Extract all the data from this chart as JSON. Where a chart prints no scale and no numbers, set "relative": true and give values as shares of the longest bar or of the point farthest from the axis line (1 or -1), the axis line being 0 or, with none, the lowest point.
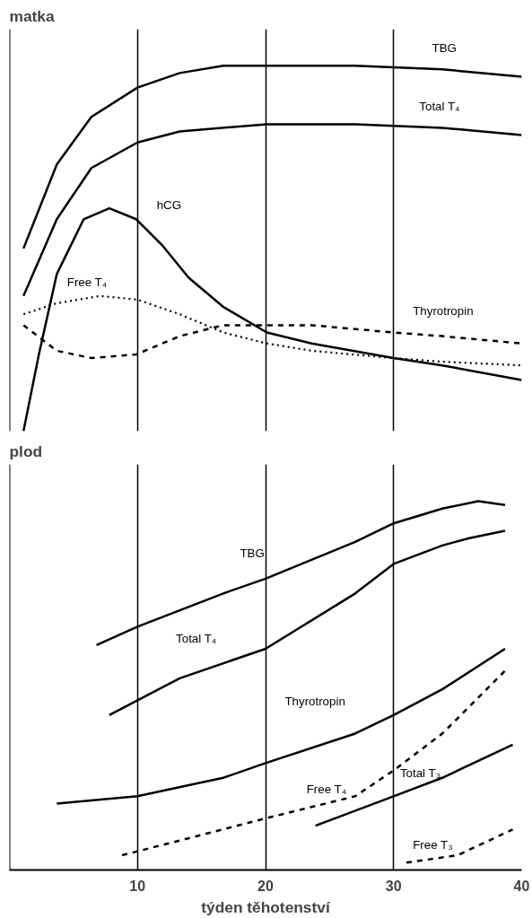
{
  "chart_data": [
    {
      "type": "line",
      "title": "matka",
      "relative": true,
      "xlim": [
        0,
        40
      ],
      "xticks": [
        10,
        20,
        30,
        40
      ],
      "tick_labels": false,
      "grid": "x",
      "legend": false,
      "marker": "none",
      "series": [
        {
          "name": "TBG",
          "color": "#000000",
          "line_style": "solid",
          "x": [
            1.1,
            3.7,
            6.4,
            10,
            13.3,
            16.7,
            20.1,
            27,
            33.8,
            40
          ],
          "values": [
            0.5,
            0.73,
            0.86,
            0.94,
            0.98,
            1.0,
            1.0,
            1.0,
            0.99,
            0.97
          ]
        },
        {
          "name": "Total T₄",
          "color": "#000000",
          "line_style": "solid",
          "x": [
            1.1,
            3.7,
            6.4,
            10,
            13.3,
            20.1,
            27,
            33.8,
            40
          ],
          "values": [
            0.37,
            0.58,
            0.72,
            0.79,
            0.82,
            0.84,
            0.84,
            0.83,
            0.81
          ]
        },
        {
          "name": "hCG",
          "color": "#000000",
          "line_style": "solid",
          "x": [
            1.1,
            2.3,
            3.7,
            5.8,
            7.8,
            9.9,
            11.9,
            14,
            16.7,
            20.1,
            23.6,
            30,
            33.8,
            40
          ],
          "values": [
            0,
            0.21,
            0.43,
            0.58,
            0.61,
            0.58,
            0.51,
            0.42,
            0.34,
            0.27,
            0.24,
            0.2,
            0.18,
            0.14
          ]
        },
        {
          "name": "Free T₄",
          "color": "#000000",
          "line_style": "dotted",
          "x": [
            1.1,
            3.7,
            7.1,
            10,
            13.3,
            16.7,
            20.1,
            23.6,
            30,
            33.8,
            40
          ],
          "values": [
            0.32,
            0.35,
            0.37,
            0.36,
            0.32,
            0.27,
            0.24,
            0.22,
            0.2,
            0.19,
            0.18
          ]
        },
        {
          "name": "Thyrotropin",
          "color": "#000000",
          "line_style": "dashed",
          "x": [
            1.1,
            3.7,
            6.4,
            9.9,
            13.3,
            16.7,
            20.1,
            23.6,
            30,
            33.8,
            40
          ],
          "values": [
            0.29,
            0.22,
            0.2,
            0.21,
            0.26,
            0.29,
            0.29,
            0.29,
            0.27,
            0.26,
            0.24
          ]
        }
      ]
    },
    {
      "type": "line",
      "title": "plod",
      "xlabel": "týden těhotenství",
      "relative": true,
      "xlim": [
        0,
        40
      ],
      "xticks": [
        10,
        20,
        30,
        40
      ],
      "tick_labels": "x",
      "grid": "x",
      "legend": false,
      "marker": "none",
      "series": [
        {
          "name": "TBG",
          "color": "#000000",
          "line_style": "solid",
          "x": [
            6.8,
            10,
            16.7,
            20,
            27,
            30,
            33.8,
            36.6,
            38.7
          ],
          "values": [
            0.61,
            0.66,
            0.75,
            0.79,
            0.89,
            0.94,
            0.98,
            1.0,
            0.99
          ]
        },
        {
          "name": "Total T₄",
          "color": "#000000",
          "line_style": "solid",
          "x": [
            7.8,
            13.3,
            20,
            27,
            30,
            33.8,
            35.9,
            38.7
          ],
          "values": [
            0.42,
            0.52,
            0.6,
            0.75,
            0.83,
            0.88,
            0.9,
            0.92
          ]
        },
        {
          "name": "Thyrotropin",
          "color": "#000000",
          "line_style": "solid",
          "x": [
            3.7,
            10,
            16.7,
            20,
            27,
            30,
            33.8,
            38.7
          ],
          "values": [
            0.18,
            0.2,
            0.25,
            0.29,
            0.37,
            0.42,
            0.49,
            0.6
          ]
        },
        {
          "name": "Free T₄",
          "color": "#000000",
          "line_style": "dashed",
          "x": [
            8.8,
            13.3,
            20,
            27,
            30,
            33.8,
            38.7
          ],
          "values": [
            0.04,
            0.08,
            0.14,
            0.2,
            0.27,
            0.37,
            0.54
          ]
        },
        {
          "name": "Total T₃",
          "color": "#000000",
          "line_style": "solid",
          "x": [
            23.9,
            30,
            33.8,
            39.3
          ],
          "values": [
            0.12,
            0.2,
            0.25,
            0.34
          ]
        },
        {
          "name": "Free T₃",
          "color": "#000000",
          "line_style": "dashed",
          "x": [
            31,
            35,
            39.3
          ],
          "values": [
            0.02,
            0.04,
            0.11
          ]
        }
      ]
    }
  ]
}
